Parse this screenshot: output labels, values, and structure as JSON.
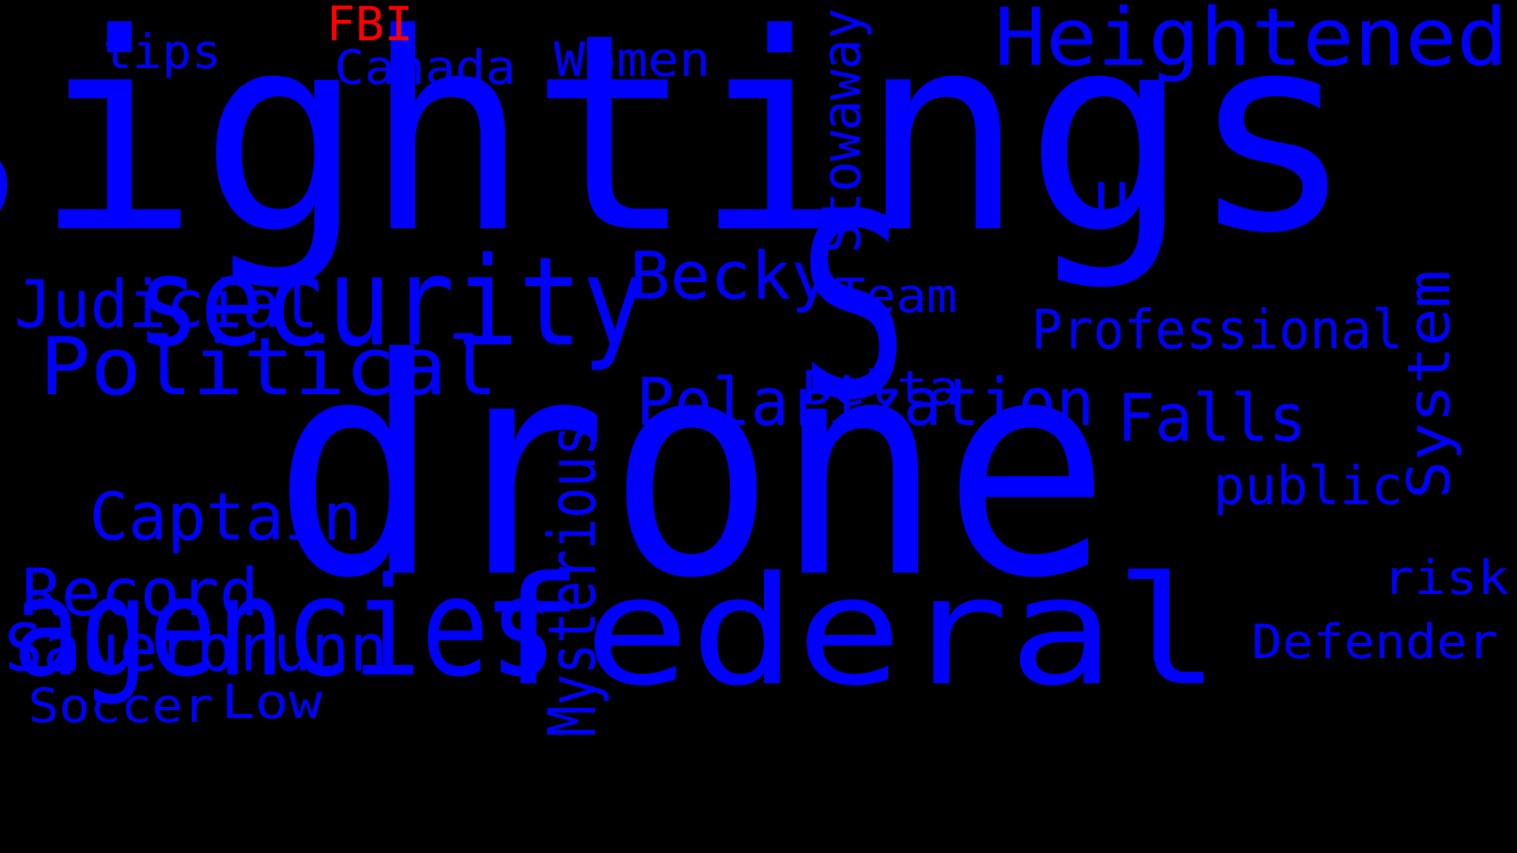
{
  "colors": {
    "background": "#000000",
    "primary_word": "#0000ff",
    "highlight_word": "#ff0000"
  },
  "words": [
    {
      "text": "sightings",
      "highlight": false,
      "vertical": false
    },
    {
      "text": "drone",
      "highlight": false,
      "vertical": false
    },
    {
      "text": "S",
      "highlight": false,
      "vertical": false
    },
    {
      "text": "federal",
      "highlight": false,
      "vertical": false
    },
    {
      "text": "agencies",
      "highlight": false,
      "vertical": false
    },
    {
      "text": "security",
      "highlight": false,
      "vertical": false
    },
    {
      "text": "Heightened",
      "highlight": false,
      "vertical": false
    },
    {
      "text": "Political",
      "highlight": false,
      "vertical": false
    },
    {
      "text": "Polarization",
      "highlight": false,
      "vertical": false
    },
    {
      "text": "Becky",
      "highlight": false,
      "vertical": false
    },
    {
      "text": "Judicial",
      "highlight": false,
      "vertical": false
    },
    {
      "text": "Captain",
      "highlight": false,
      "vertical": false
    },
    {
      "text": "Record",
      "highlight": false,
      "vertical": false
    },
    {
      "text": "Sauerbrunn",
      "highlight": false,
      "vertical": false
    },
    {
      "text": "Falls",
      "highlight": false,
      "vertical": false
    },
    {
      "text": "Professional",
      "highlight": false,
      "vertical": false
    },
    {
      "text": "Mysterious",
      "highlight": false,
      "vertical": true
    },
    {
      "text": "Stowaway",
      "highlight": false,
      "vertical": true
    },
    {
      "text": "System",
      "highlight": false,
      "vertical": true
    },
    {
      "text": "Women",
      "highlight": false,
      "vertical": false
    },
    {
      "text": "Canada",
      "highlight": false,
      "vertical": false
    },
    {
      "text": "FBI",
      "highlight": true,
      "vertical": false
    },
    {
      "text": "tips",
      "highlight": false,
      "vertical": false
    },
    {
      "text": "Team",
      "highlight": false,
      "vertical": false
    },
    {
      "text": "Delta",
      "highlight": false,
      "vertical": false
    },
    {
      "text": "public",
      "highlight": false,
      "vertical": false
    },
    {
      "text": "risk",
      "highlight": false,
      "vertical": false
    },
    {
      "text": "Defender",
      "highlight": false,
      "vertical": false
    },
    {
      "text": "Soccer",
      "highlight": false,
      "vertical": false
    },
    {
      "text": "Low",
      "highlight": false,
      "vertical": false
    },
    {
      "text": "U",
      "highlight": false,
      "vertical": false
    }
  ]
}
